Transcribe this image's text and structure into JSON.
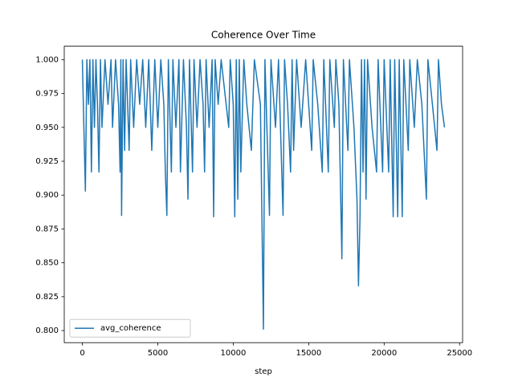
{
  "chart_data": {
    "type": "line",
    "title": "Coherence Over Time",
    "x_label": "step",
    "x": [
      0,
      100,
      200,
      300,
      400,
      500,
      600,
      700,
      800,
      900,
      1000,
      1100,
      1200,
      1300,
      1500,
      1700,
      1900,
      2000,
      2200,
      2400,
      2500,
      2550,
      2600,
      2700,
      2800,
      2900,
      3000,
      3100,
      3200,
      3400,
      3600,
      3800,
      4000,
      4200,
      4400,
      4600,
      4800,
      5000,
      5200,
      5400,
      5500,
      5600,
      5700,
      5900,
      6000,
      6200,
      6400,
      6500,
      6700,
      6900,
      7000,
      7100,
      7300,
      7400,
      7600,
      7800,
      8000,
      8100,
      8200,
      8400,
      8600,
      8700,
      8800,
      9000,
      9200,
      9700,
      9800,
      10000,
      10100,
      10200,
      10300,
      10400,
      10500,
      10700,
      10900,
      11200,
      11400,
      11800,
      12000,
      12100,
      12400,
      12500,
      12800,
      13000,
      13300,
      13400,
      13600,
      13800,
      13900,
      14000,
      14200,
      14500,
      14800,
      15200,
      15300,
      15600,
      15900,
      16000,
      16300,
      16400,
      16700,
      16800,
      17000,
      17200,
      17300,
      17600,
      17700,
      18000,
      18200,
      18300,
      18400,
      18500,
      18600,
      18700,
      18800,
      18900,
      19200,
      19500,
      19600,
      19900,
      20000,
      20300,
      20400,
      20600,
      20700,
      20900,
      21000,
      21200,
      21300,
      21600,
      21700,
      22000,
      22200,
      22500,
      22800,
      22900,
      23200,
      23500,
      23600,
      23800,
      24000
    ],
    "series": [
      {
        "name": "avg_coherence",
        "color": "#1f77b4",
        "values": [
          1,
          0.95,
          0.903,
          1,
          0.967,
          1,
          0.917,
          1,
          0.95,
          1,
          0.967,
          0.917,
          1,
          0.95,
          1,
          0.967,
          1,
          0.95,
          1,
          0.967,
          0.917,
          1,
          0.885,
          1,
          0.933,
          1,
          0.967,
          0.933,
          1,
          0.95,
          1,
          0.967,
          1,
          0.95,
          1,
          0.933,
          1,
          0.95,
          1,
          0.967,
          0.917,
          0.885,
          1,
          0.917,
          1,
          0.95,
          1,
          0.917,
          1,
          0.95,
          0.897,
          1,
          0.917,
          1,
          0.95,
          1,
          0.967,
          0.917,
          1,
          0.95,
          1,
          0.884,
          1,
          0.967,
          1,
          0.95,
          1,
          0.967,
          0.884,
          1,
          0.897,
          1,
          0.917,
          1,
          0.967,
          0.933,
          1,
          0.967,
          0.801,
          1,
          0.885,
          1,
          0.95,
          1,
          0.885,
          1,
          0.967,
          0.917,
          1,
          0.933,
          1,
          0.95,
          1,
          0.933,
          1,
          0.967,
          0.917,
          1,
          0.917,
          1,
          0.95,
          1,
          0.967,
          0.853,
          1,
          0.933,
          1,
          0.95,
          0.897,
          0.833,
          0.883,
          1,
          0.917,
          1,
          0.897,
          1,
          0.95,
          0.917,
          1,
          0.917,
          1,
          0.917,
          1,
          0.884,
          1,
          0.884,
          1,
          0.884,
          1,
          0.933,
          1,
          0.95,
          1,
          0.967,
          0.897,
          1,
          0.967,
          0.933,
          1,
          0.967,
          0.95
        ]
      }
    ],
    "xlim": [
      -1200,
      25200
    ],
    "ylim": [
      0.79105,
      1.00995
    ],
    "xticks": [
      0,
      5000,
      10000,
      15000,
      20000,
      25000
    ],
    "yticks": [
      {
        "value": 0.8,
        "label": "0.800"
      },
      {
        "value": 0.825,
        "label": "0.825"
      },
      {
        "value": 0.85,
        "label": "0.850"
      },
      {
        "value": 0.875,
        "label": "0.875"
      },
      {
        "value": 0.9,
        "label": "0.900"
      },
      {
        "value": 0.925,
        "label": "0.925"
      },
      {
        "value": 0.95,
        "label": "0.950"
      },
      {
        "value": 0.975,
        "label": "0.975"
      },
      {
        "value": 1.0,
        "label": "1.000"
      }
    ],
    "grid": false,
    "legend": "lower left"
  }
}
